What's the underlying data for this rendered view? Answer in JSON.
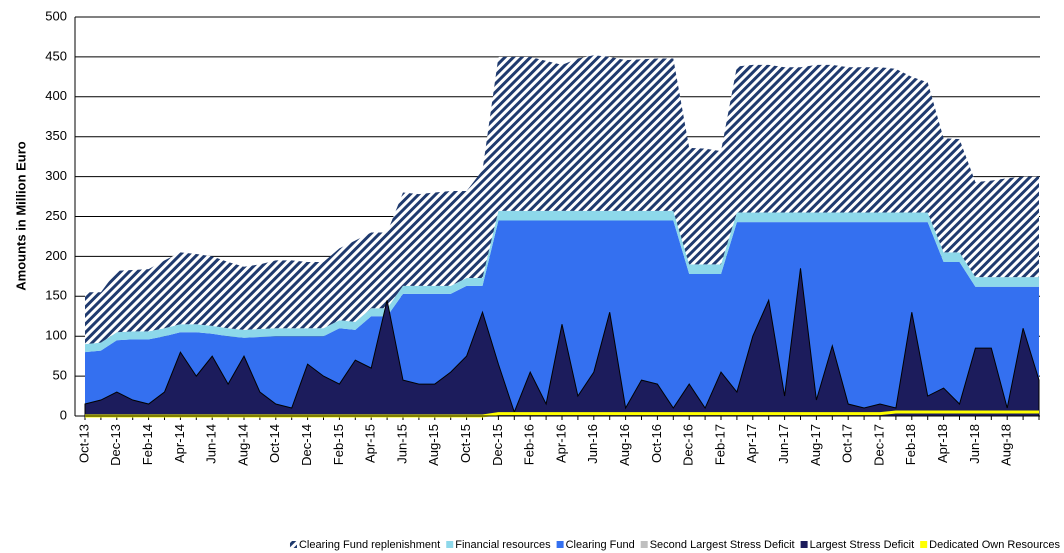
{
  "chart_data": {
    "type": "area",
    "y_label": "Amounts in Million Euro",
    "ylim": [
      0,
      500
    ],
    "yticks": [
      0,
      50,
      100,
      150,
      200,
      250,
      300,
      350,
      400,
      450,
      500
    ],
    "grid": true,
    "legend": "bottom",
    "categories": [
      "Oct-13",
      null,
      "Dec-13",
      null,
      "Feb-14",
      null,
      "Apr-14",
      null,
      "Jun-14",
      null,
      "Aug-14",
      null,
      "Oct-14",
      null,
      "Dec-14",
      null,
      "Feb-15",
      null,
      "Apr-15",
      null,
      "Jun-15",
      null,
      "Aug-15",
      null,
      "Oct-15",
      null,
      "Dec-15",
      null,
      "Feb-16",
      null,
      "Apr-16",
      null,
      "Jun-16",
      null,
      "Aug-16",
      null,
      "Oct-16",
      null,
      "Dec-16",
      null,
      "Feb-17",
      null,
      "Apr-17",
      null,
      "Jun-17",
      null,
      "Aug-17",
      null,
      "Oct-17",
      null,
      "Dec-17",
      null,
      "Feb-18",
      null,
      "Apr-18",
      null,
      "Jun-18",
      null,
      "Aug-18",
      null,
      null
    ],
    "series": [
      {
        "name": "Clearing Fund replenishment",
        "color": "#1f3a6e",
        "pattern": "hatch",
        "stacked": true,
        "values": [
          65,
          63,
          77,
          77,
          78,
          85,
          90,
          88,
          87,
          83,
          79,
          81,
          85,
          85,
          83,
          83,
          90,
          102,
          95,
          95,
          117,
          115,
          117,
          119,
          109,
          135,
          193,
          193,
          193,
          188,
          183,
          191,
          195,
          193,
          189,
          190,
          191,
          191,
          146,
          145,
          142,
          183,
          185,
          185,
          182,
          182,
          185,
          185,
          182,
          182,
          182,
          180,
          170,
          163,
          143,
          142,
          119,
          121,
          124,
          126,
          126
        ]
      },
      {
        "name": "Financial resources",
        "color": "#8dd8ea",
        "stacked": true,
        "values": [
          10,
          10,
          10,
          10,
          10,
          10,
          10,
          10,
          10,
          10,
          10,
          10,
          10,
          10,
          10,
          10,
          10,
          10,
          10,
          10,
          10,
          10,
          10,
          10,
          10,
          10,
          12,
          12,
          12,
          12,
          12,
          12,
          12,
          12,
          12,
          12,
          12,
          12,
          12,
          12,
          12,
          12,
          12,
          12,
          12,
          12,
          12,
          12,
          12,
          12,
          12,
          12,
          12,
          12,
          12,
          12,
          12,
          12,
          12,
          12,
          12
        ]
      },
      {
        "name": "Clearing Fund",
        "color": "#3470f0",
        "stacked": true,
        "values": [
          80,
          82,
          95,
          96,
          96,
          100,
          105,
          105,
          103,
          100,
          98,
          99,
          100,
          100,
          100,
          100,
          110,
          108,
          125,
          125,
          153,
          153,
          153,
          153,
          163,
          163,
          245,
          245,
          245,
          245,
          245,
          245,
          245,
          245,
          245,
          245,
          245,
          245,
          178,
          178,
          178,
          243,
          243,
          243,
          243,
          243,
          243,
          243,
          243,
          243,
          243,
          243,
          243,
          243,
          193,
          193,
          162,
          162,
          162,
          162,
          162
        ]
      },
      {
        "name": "Second Largest Stress Deficit",
        "color": "#bfbfbf",
        "values": [
          8,
          10,
          18,
          10,
          8,
          15,
          40,
          25,
          38,
          20,
          40,
          15,
          8,
          5,
          30,
          25,
          20,
          35,
          30,
          60,
          22,
          20,
          20,
          25,
          35,
          60,
          30,
          3,
          25,
          8,
          50,
          12,
          25,
          60,
          5,
          20,
          20,
          5,
          20,
          5,
          25,
          15,
          50,
          60,
          12,
          80,
          10,
          40,
          8,
          5,
          8,
          5,
          60,
          12,
          18,
          8,
          40,
          40,
          5,
          50,
          20
        ]
      },
      {
        "name": "Largest Stress Deficit",
        "color": "#1c1c5c",
        "values": [
          15,
          20,
          30,
          20,
          15,
          30,
          80,
          50,
          75,
          40,
          75,
          30,
          15,
          10,
          65,
          50,
          40,
          70,
          60,
          145,
          45,
          40,
          40,
          55,
          75,
          130,
          65,
          5,
          55,
          15,
          115,
          25,
          55,
          130,
          10,
          45,
          40,
          10,
          40,
          10,
          55,
          30,
          100,
          145,
          25,
          185,
          20,
          88,
          15,
          10,
          15,
          10,
          130,
          25,
          35,
          15,
          85,
          85,
          10,
          110,
          45
        ]
      },
      {
        "name": "Dedicated Own Resources",
        "color": "#ffff00",
        "line": true,
        "values": [
          0,
          0,
          0,
          0,
          0,
          0,
          0,
          0,
          0,
          0,
          0,
          0,
          0,
          0,
          0,
          0,
          0,
          0,
          0,
          0,
          0,
          0,
          0,
          0,
          0,
          0,
          3,
          3,
          3,
          3,
          3,
          3,
          3,
          3,
          3,
          3,
          3,
          3,
          3,
          3,
          3,
          3,
          3,
          3,
          3,
          3,
          3,
          3,
          3,
          3,
          3,
          5,
          5,
          5,
          5,
          5,
          5,
          5,
          5,
          5,
          5
        ]
      }
    ]
  }
}
